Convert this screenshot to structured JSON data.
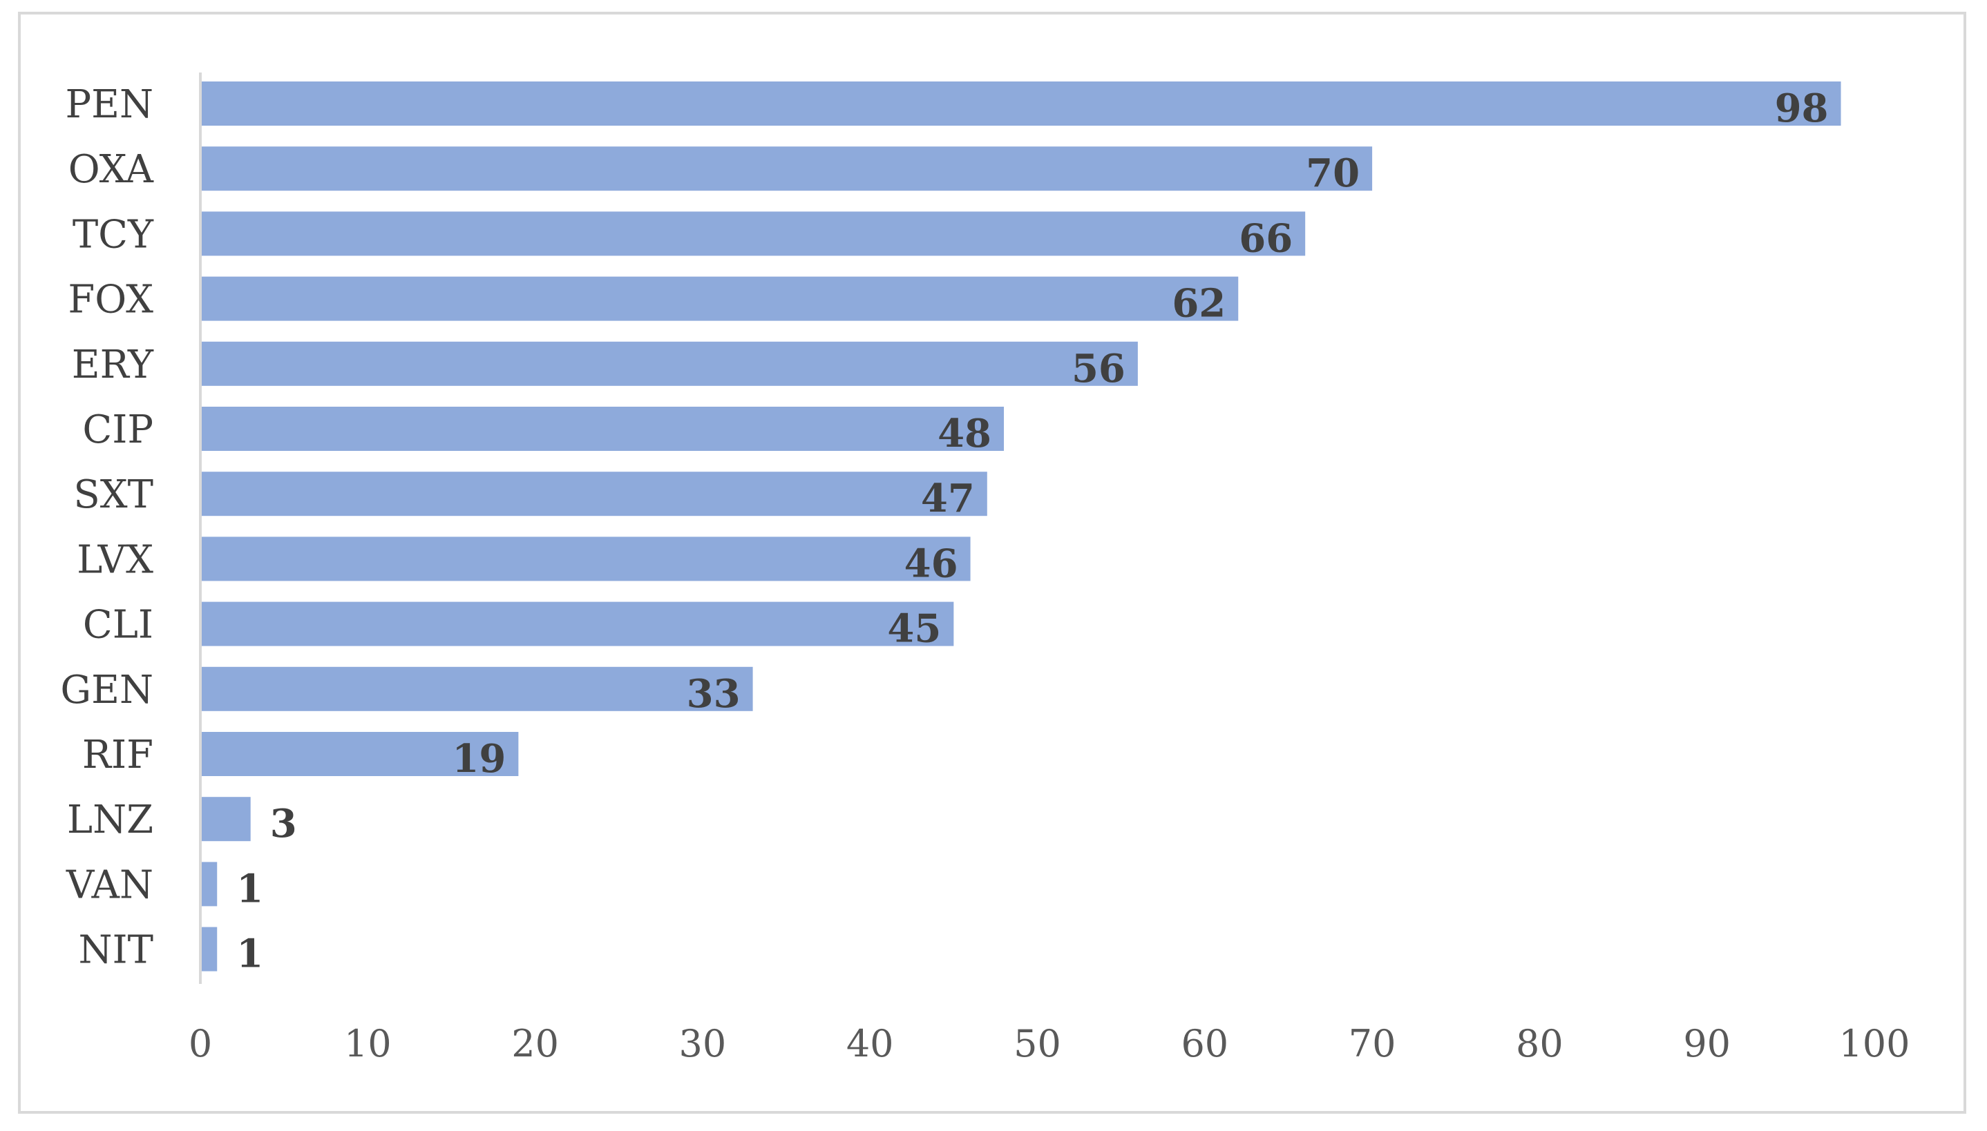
{
  "chart_data": {
    "type": "bar",
    "orientation": "horizontal",
    "title": "",
    "xlabel": "",
    "ylabel": "",
    "categories": [
      "PEN",
      "OXA",
      "TCY",
      "FOX",
      "ERY",
      "CIP",
      "SXT",
      "LVX",
      "CLI",
      "GEN",
      "RIF",
      "LNZ",
      "VAN",
      "NIT"
    ],
    "values": [
      98,
      70,
      66,
      62,
      56,
      48,
      47,
      46,
      45,
      33,
      19,
      3,
      1,
      1
    ],
    "data_labels": [
      "98",
      "70",
      "66",
      "62",
      "56",
      "48",
      "47",
      "46",
      "45",
      "33",
      "19",
      "3",
      "1",
      "1"
    ],
    "xlim": [
      0,
      100
    ],
    "x_ticks": [
      0,
      10,
      20,
      30,
      40,
      50,
      60,
      70,
      80,
      90,
      100
    ],
    "x_tick_labels": [
      "0",
      "10",
      "20",
      "30",
      "40",
      "50",
      "60",
      "70",
      "80",
      "90",
      "100"
    ],
    "bar_color": "#8eaadb",
    "grid": false,
    "legend": "none"
  }
}
